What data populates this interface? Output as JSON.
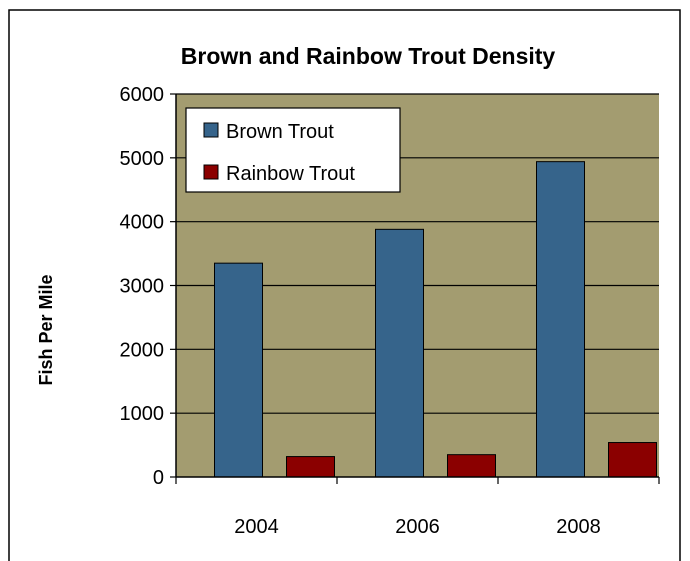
{
  "chart_data": {
    "type": "bar",
    "title": "Brown and Rainbow Trout Density",
    "xlabel": "",
    "ylabel": "Fish Per Mile",
    "categories": [
      "2004",
      "2006",
      "2008"
    ],
    "series": [
      {
        "name": "Brown Trout",
        "values": [
          3350,
          3880,
          4940
        ],
        "color": "#36648b"
      },
      {
        "name": "Rainbow Trout",
        "values": [
          320,
          350,
          540
        ],
        "color": "#8b0000"
      }
    ],
    "ylim": [
      0,
      6000
    ],
    "yticks": [
      "0",
      "1000",
      "2000",
      "3000",
      "4000",
      "5000",
      "6000"
    ],
    "grid": true,
    "legend_position": "top-left",
    "plot_background": "#a39c70"
  }
}
